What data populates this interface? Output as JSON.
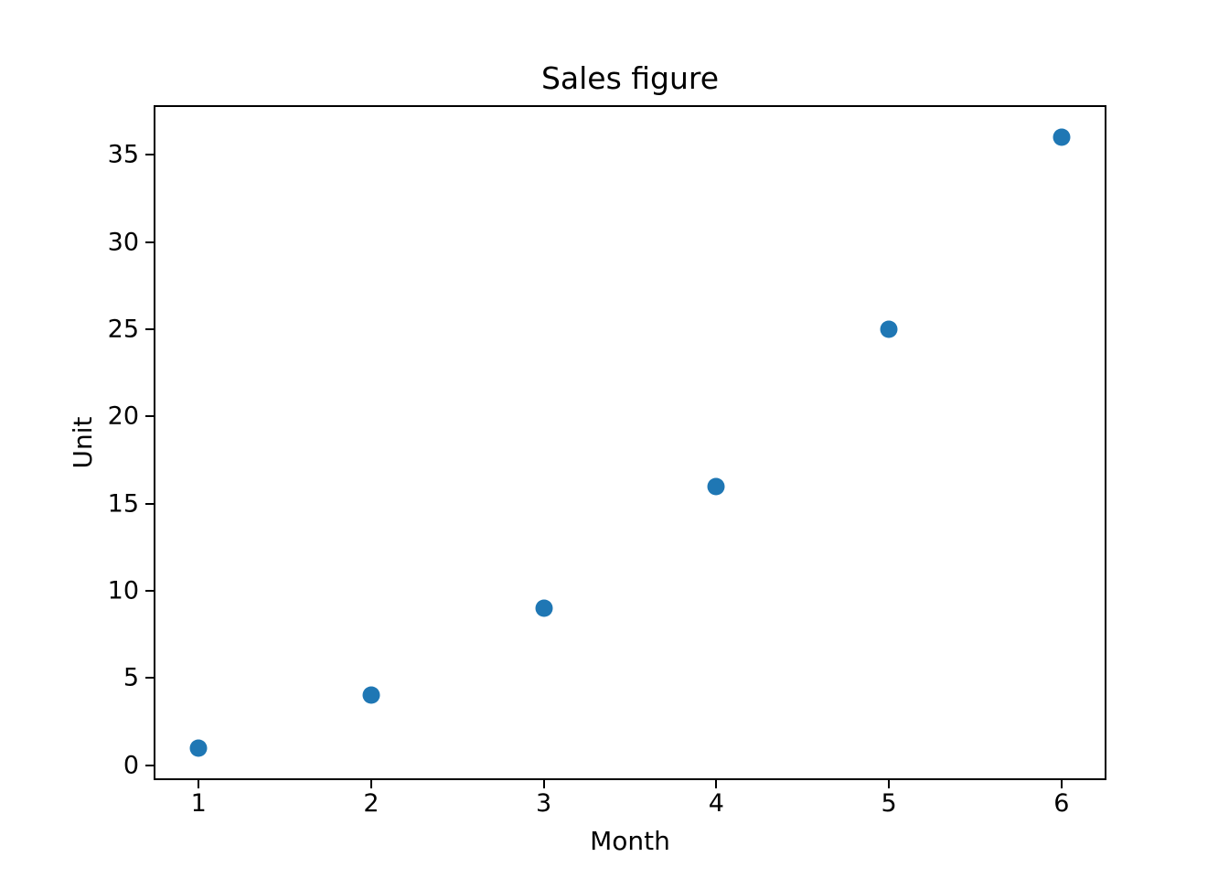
{
  "figure": {
    "background": "#ffffff",
    "text_color": "#000000",
    "spine_color": "#000000"
  },
  "chart_data": {
    "type": "scatter",
    "title": "Sales figure",
    "xlabel": "Month",
    "ylabel": "Unit",
    "x": [
      1,
      2,
      3,
      4,
      5,
      6
    ],
    "y": [
      1,
      4,
      9,
      16,
      25,
      36
    ],
    "points": [
      {
        "month": 1,
        "unit": 1
      },
      {
        "month": 2,
        "unit": 4
      },
      {
        "month": 3,
        "unit": 9
      },
      {
        "month": 4,
        "unit": 16
      },
      {
        "month": 5,
        "unit": 25
      },
      {
        "month": 6,
        "unit": 36
      }
    ],
    "xlim": [
      0.75,
      6.25
    ],
    "ylim": [
      -0.75,
      37.75
    ],
    "xticks": [
      "1",
      "2",
      "3",
      "4",
      "5",
      "6"
    ],
    "xtick_values": [
      1,
      2,
      3,
      4,
      5,
      6
    ],
    "yticks": [
      "0",
      "5",
      "10",
      "15",
      "20",
      "25",
      "30",
      "35"
    ],
    "ytick_values": [
      0,
      5,
      10,
      15,
      20,
      25,
      30,
      35
    ],
    "marker_color": "#1f77b4",
    "marker_shape": "circle",
    "grid": false,
    "legend": "none"
  }
}
